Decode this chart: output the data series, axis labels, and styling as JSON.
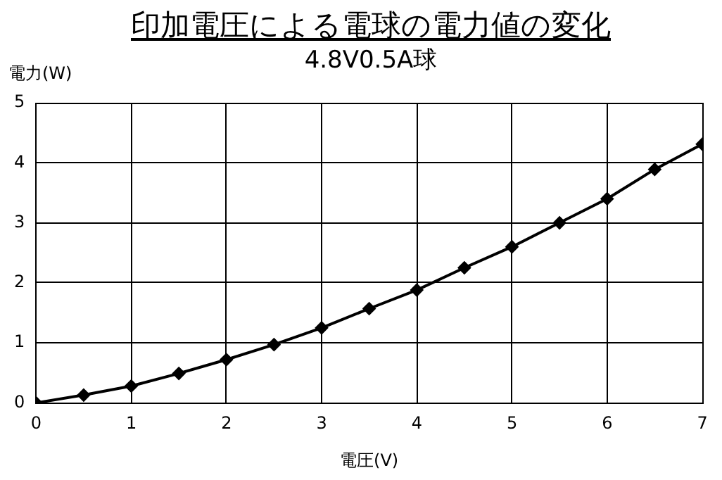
{
  "chart_data": {
    "type": "line",
    "title": "印加電圧による電球の電力値の変化",
    "subtitle": "4.8V0.5A球",
    "xlabel": "電圧(V)",
    "ylabel": "電力(W)",
    "x": [
      0,
      0.5,
      1,
      1.5,
      2,
      2.5,
      3,
      3.5,
      4,
      4.5,
      5,
      5.5,
      6,
      6.5,
      7
    ],
    "series": [
      {
        "color": "#000000",
        "values": [
          0,
          0.13,
          0.28,
          0.49,
          0.72,
          0.97,
          1.25,
          1.57,
          1.88,
          2.25,
          2.6,
          3.0,
          3.4,
          3.89,
          4.31
        ]
      }
    ],
    "xlim": [
      0,
      7
    ],
    "xticks": [
      0,
      1,
      2,
      3,
      4,
      5,
      6,
      7
    ],
    "ylim": [
      0,
      5
    ],
    "yticks": [
      0,
      1,
      2,
      3,
      4,
      5
    ],
    "grid": true,
    "legend": false,
    "marker": "diamond",
    "line_style": "solid"
  }
}
